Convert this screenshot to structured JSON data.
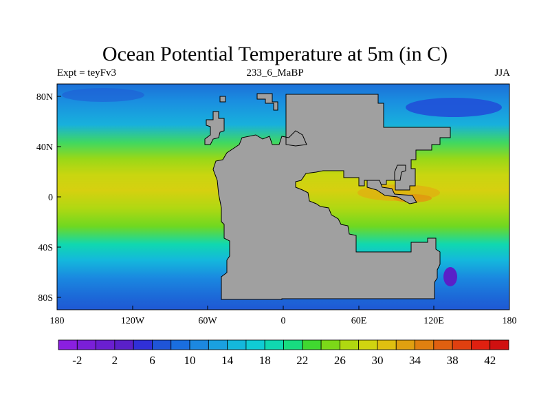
{
  "title": "Ocean Potential Temperature at 5m (in C)",
  "left_label": "Expt = teyFv3",
  "center_label": "233_6_MaBP",
  "right_label": "JJA",
  "x_ticks": [
    "180",
    "120W",
    "60W",
    "0",
    "60E",
    "120E",
    "180"
  ],
  "y_ticks": [
    "80N",
    "40N",
    "0",
    "40S",
    "80S"
  ],
  "colorbar": {
    "labels": [
      "-2",
      "2",
      "6",
      "10",
      "14",
      "18",
      "22",
      "26",
      "30",
      "34",
      "38",
      "42"
    ],
    "colors": [
      "#8a1fe0",
      "#7a1fd8",
      "#6a1fd0",
      "#5a20c8",
      "#3030d8",
      "#1f55d8",
      "#1a6ee0",
      "#1c88e0",
      "#1aa0e0",
      "#14b8dc",
      "#10ccd4",
      "#10d8b0",
      "#18dc80",
      "#40d830",
      "#7cd818",
      "#b0d810",
      "#d0d410",
      "#e0c010",
      "#e0a010",
      "#e08010",
      "#e06010",
      "#e04010",
      "#e02010",
      "#d01010"
    ]
  }
}
